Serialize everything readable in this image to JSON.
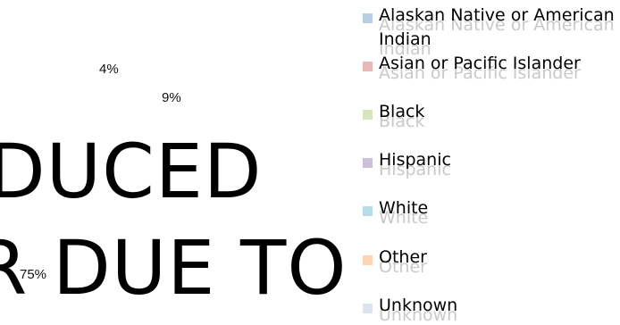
{
  "chart_data": {
    "type": "pie",
    "categories": [
      "Alaskan Native or American Indian",
      "Asian or Pacific Islander",
      "Black",
      "Hispanic",
      "White",
      "Other",
      "Unknown"
    ],
    "slices": [
      {
        "name": "Alaskan Native or American Indian",
        "color": "#b9cde5"
      },
      {
        "name": "Asian or Pacific Islander",
        "color": "#e6b9b8",
        "value": 4,
        "label": "4%"
      },
      {
        "name": "Black",
        "color": "#d7e4bd"
      },
      {
        "name": "Hispanic",
        "color": "#ccc1da"
      },
      {
        "name": "White",
        "color": "#b7dee8",
        "value": 75,
        "label": "75%"
      },
      {
        "name": "Other",
        "color": "#fcd5b5",
        "value": 9,
        "label": "9%"
      },
      {
        "name": "Unknown",
        "color": "#dde3ef"
      }
    ],
    "legend_position": "right"
  },
  "watermark": {
    "line1": "DUCED",
    "line2": "R DUE TO"
  },
  "legend": {
    "items": [
      {
        "line1": "Alaskan Native or American",
        "line2": "Indian",
        "color": "#b9cde5"
      },
      {
        "line1": "Asian or Pacific Islander",
        "line2": "",
        "color": "#e6b9b8"
      },
      {
        "line1": "Black",
        "line2": "",
        "color": "#d7e4bd"
      },
      {
        "line1": "Hispanic",
        "line2": "",
        "color": "#ccc1da"
      },
      {
        "line1": "White",
        "line2": "",
        "color": "#b7dee8"
      },
      {
        "line1": "Other",
        "line2": "",
        "color": "#fcd5b5"
      },
      {
        "line1": "Unknown",
        "line2": "",
        "color": "#dde3ef"
      }
    ]
  }
}
